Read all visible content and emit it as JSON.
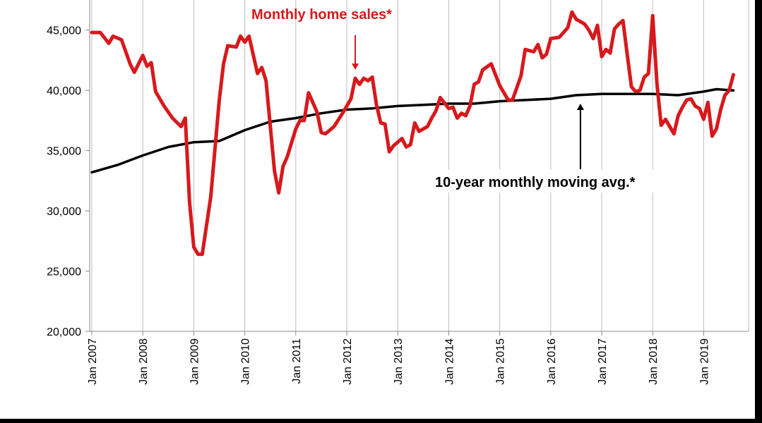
{
  "colors": {
    "background": "#000000",
    "panel": "#ffffff",
    "grid": "#bfbfbf",
    "sales": "#d7191c",
    "average": "#000000"
  },
  "chart_data": {
    "type": "line",
    "ylim": [
      20000,
      47500
    ],
    "yticks": [
      20000,
      25000,
      30000,
      35000,
      40000,
      45000
    ],
    "ytick_labels": [
      "20,000",
      "25,000",
      "30,000",
      "35,000",
      "40,000",
      "45,000"
    ],
    "xticks": [
      "2007-01",
      "2008-01",
      "2009-01",
      "2010-01",
      "2011-01",
      "2012-01",
      "2013-01",
      "2014-01",
      "2015-01",
      "2016-01",
      "2017-01",
      "2018-01",
      "2019-01"
    ],
    "xtick_labels": [
      "Jan 2007",
      "Jan 2008",
      "Jan 2009",
      "Jan 2010",
      "Jan 2011",
      "Jan 2012",
      "Jan 2013",
      "Jan 2014",
      "Jan 2015",
      "Jan 2016",
      "Jan 2017",
      "Jan 2018",
      "Jan 2019"
    ],
    "x_range": [
      "2007-01",
      "2019-08"
    ],
    "grid": "vertical",
    "series": [
      {
        "name": "Monthly home sales*",
        "color": "#d7191c",
        "points": [
          [
            "2007-01",
            44800
          ],
          [
            "2007-03",
            44800
          ],
          [
            "2007-05",
            43900
          ],
          [
            "2007-06",
            44500
          ],
          [
            "2007-08",
            44200
          ],
          [
            "2007-10",
            42200
          ],
          [
            "2007-11",
            41500
          ],
          [
            "2008-01",
            42900
          ],
          [
            "2008-02",
            42000
          ],
          [
            "2008-03",
            42300
          ],
          [
            "2008-04",
            39900
          ],
          [
            "2008-06",
            38700
          ],
          [
            "2008-08",
            37700
          ],
          [
            "2008-10",
            37000
          ],
          [
            "2008-11",
            37700
          ],
          [
            "2008-12",
            30700
          ],
          [
            "2009-01",
            27000
          ],
          [
            "2009-02",
            26400
          ],
          [
            "2009-03",
            26400
          ],
          [
            "2009-05",
            31200
          ],
          [
            "2009-07",
            39200
          ],
          [
            "2009-08",
            42200
          ],
          [
            "2009-09",
            43700
          ],
          [
            "2009-11",
            43600
          ],
          [
            "2009-12",
            44500
          ],
          [
            "2010-01",
            44000
          ],
          [
            "2010-02",
            44500
          ],
          [
            "2010-04",
            41400
          ],
          [
            "2010-05",
            41900
          ],
          [
            "2010-06",
            40800
          ],
          [
            "2010-08",
            33300
          ],
          [
            "2010-09",
            31500
          ],
          [
            "2010-10",
            33700
          ],
          [
            "2010-11",
            34500
          ],
          [
            "2011-01",
            36800
          ],
          [
            "2011-02",
            37500
          ],
          [
            "2011-03",
            37500
          ],
          [
            "2011-04",
            39800
          ],
          [
            "2011-05",
            39000
          ],
          [
            "2011-06",
            38200
          ],
          [
            "2011-07",
            36500
          ],
          [
            "2011-08",
            36400
          ],
          [
            "2011-10",
            37000
          ],
          [
            "2011-12",
            38100
          ],
          [
            "2012-02",
            39300
          ],
          [
            "2012-03",
            41000
          ],
          [
            "2012-04",
            40500
          ],
          [
            "2012-05",
            41000
          ],
          [
            "2012-06",
            40800
          ],
          [
            "2012-07",
            41100
          ],
          [
            "2012-08",
            38800
          ],
          [
            "2012-09",
            37300
          ],
          [
            "2012-10",
            37200
          ],
          [
            "2012-11",
            34900
          ],
          [
            "2012-12",
            35400
          ],
          [
            "2013-02",
            36000
          ],
          [
            "2013-03",
            35300
          ],
          [
            "2013-04",
            35500
          ],
          [
            "2013-05",
            37300
          ],
          [
            "2013-06",
            36600
          ],
          [
            "2013-08",
            37000
          ],
          [
            "2013-09",
            37700
          ],
          [
            "2013-10",
            38300
          ],
          [
            "2013-11",
            39400
          ],
          [
            "2014-01",
            38500
          ],
          [
            "2014-02",
            38600
          ],
          [
            "2014-03",
            37700
          ],
          [
            "2014-04",
            38100
          ],
          [
            "2014-05",
            37900
          ],
          [
            "2014-06",
            38700
          ],
          [
            "2014-07",
            40500
          ],
          [
            "2014-08",
            40700
          ],
          [
            "2014-09",
            41700
          ],
          [
            "2014-11",
            42200
          ],
          [
            "2014-12",
            41300
          ],
          [
            "2015-01",
            40400
          ],
          [
            "2015-03",
            39200
          ],
          [
            "2015-04",
            39200
          ],
          [
            "2015-06",
            41200
          ],
          [
            "2015-07",
            43400
          ],
          [
            "2015-09",
            43200
          ],
          [
            "2015-10",
            43800
          ],
          [
            "2015-11",
            42700
          ],
          [
            "2015-12",
            43000
          ],
          [
            "2016-01",
            44300
          ],
          [
            "2016-03",
            44400
          ],
          [
            "2016-04",
            44800
          ],
          [
            "2016-05",
            45200
          ],
          [
            "2016-06",
            46500
          ],
          [
            "2016-07",
            45900
          ],
          [
            "2016-09",
            45500
          ],
          [
            "2016-10",
            45000
          ],
          [
            "2016-11",
            44300
          ],
          [
            "2016-12",
            45400
          ],
          [
            "2017-01",
            42800
          ],
          [
            "2017-02",
            43400
          ],
          [
            "2017-03",
            43100
          ],
          [
            "2017-04",
            45100
          ],
          [
            "2017-05",
            45500
          ],
          [
            "2017-06",
            45800
          ],
          [
            "2017-07",
            43000
          ],
          [
            "2017-08",
            40300
          ],
          [
            "2017-09",
            39900
          ],
          [
            "2017-10",
            40000
          ],
          [
            "2017-11",
            41100
          ],
          [
            "2017-12",
            41400
          ],
          [
            "2018-01",
            46200
          ],
          [
            "2018-02",
            40600
          ],
          [
            "2018-03",
            37100
          ],
          [
            "2018-04",
            37600
          ],
          [
            "2018-06",
            36400
          ],
          [
            "2018-07",
            37900
          ],
          [
            "2018-08",
            38600
          ],
          [
            "2018-09",
            39200
          ],
          [
            "2018-10",
            39300
          ],
          [
            "2018-11",
            38700
          ],
          [
            "2018-12",
            38500
          ],
          [
            "2019-01",
            37600
          ],
          [
            "2019-02",
            39000
          ],
          [
            "2019-03",
            36200
          ],
          [
            "2019-04",
            36800
          ],
          [
            "2019-05",
            38400
          ],
          [
            "2019-06",
            39600
          ],
          [
            "2019-07",
            40000
          ],
          [
            "2019-08",
            41300
          ]
        ]
      },
      {
        "name": "10-year monthly moving avg.*",
        "color": "#000000",
        "points": [
          [
            "2007-01",
            33200
          ],
          [
            "2007-07",
            33800
          ],
          [
            "2008-01",
            34600
          ],
          [
            "2008-07",
            35300
          ],
          [
            "2009-01",
            35700
          ],
          [
            "2009-07",
            35800
          ],
          [
            "2010-01",
            36700
          ],
          [
            "2010-07",
            37400
          ],
          [
            "2011-01",
            37700
          ],
          [
            "2011-07",
            38100
          ],
          [
            "2012-01",
            38400
          ],
          [
            "2012-07",
            38500
          ],
          [
            "2013-01",
            38700
          ],
          [
            "2013-07",
            38800
          ],
          [
            "2014-01",
            38900
          ],
          [
            "2014-07",
            38900
          ],
          [
            "2015-01",
            39100
          ],
          [
            "2015-07",
            39200
          ],
          [
            "2016-01",
            39300
          ],
          [
            "2016-07",
            39600
          ],
          [
            "2017-01",
            39700
          ],
          [
            "2017-07",
            39700
          ],
          [
            "2018-01",
            39700
          ],
          [
            "2018-07",
            39600
          ],
          [
            "2019-01",
            39900
          ],
          [
            "2019-04",
            40100
          ],
          [
            "2019-08",
            40000
          ]
        ]
      }
    ],
    "annotations": [
      {
        "text": "Monthly home sales*",
        "color": "#d7191c",
        "arrow": "down",
        "points_to": [
          "2012-03",
          41000
        ]
      },
      {
        "text": "10-year monthly moving avg.*",
        "color": "#000000",
        "arrow": "up",
        "points_to": [
          "2016-08",
          39600
        ]
      }
    ]
  }
}
